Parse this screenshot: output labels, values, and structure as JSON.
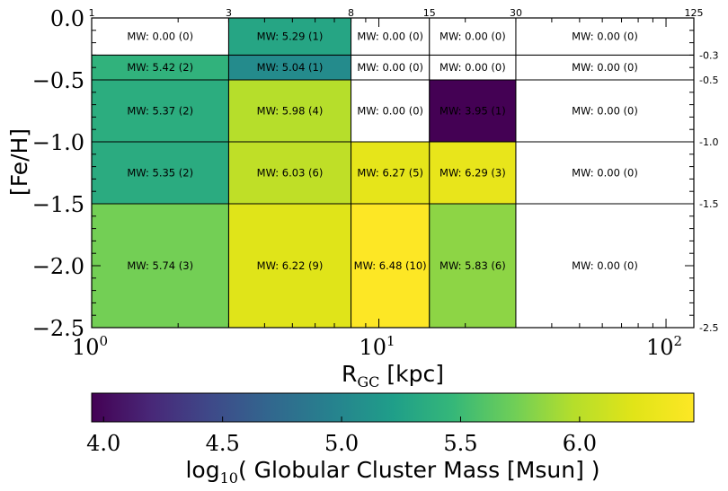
{
  "chart_data": {
    "type": "heatmap",
    "xlabel_main": "R",
    "xlabel_sub": "GC",
    "xlabel_unit": " [kpc]",
    "ylabel": "[Fe/H]",
    "x_scale": "log",
    "xlim": [
      1,
      125
    ],
    "ylim": [
      -2.5,
      0
    ],
    "x_bin_edges": [
      1,
      3,
      8,
      15,
      30,
      125
    ],
    "y_bin_edges": [
      0,
      -0.3,
      -0.5,
      -1.0,
      -1.5,
      -2.5
    ],
    "x_edge_labels": [
      "1",
      "3",
      "8",
      "15",
      "30",
      "125"
    ],
    "y_edge_labels": [
      "-0.3",
      "-0.5",
      "-1.0",
      "-1.5",
      "-2.5"
    ],
    "x_major_ticks": [
      {
        "value": 1,
        "base": "10",
        "exp": "0"
      },
      {
        "value": 10,
        "base": "10",
        "exp": "1"
      },
      {
        "value": 100,
        "base": "10",
        "exp": "2"
      }
    ],
    "y_major_ticks": [
      {
        "value": 0,
        "label": "0.0"
      },
      {
        "value": -0.5,
        "label": "−0.5"
      },
      {
        "value": -1.0,
        "label": "−1.0"
      },
      {
        "value": -1.5,
        "label": "−1.5"
      },
      {
        "value": -2.0,
        "label": "−2.0"
      },
      {
        "value": -2.5,
        "label": "−2.5"
      }
    ],
    "cells": [
      {
        "x0": 1,
        "x1": 3,
        "y0": 0,
        "y1": -0.3,
        "mass": 0.0,
        "n": 0,
        "label": "MW: 0.00 (0)"
      },
      {
        "x0": 3,
        "x1": 8,
        "y0": 0,
        "y1": -0.3,
        "mass": 5.29,
        "n": 1,
        "label": "MW: 5.29 (1)"
      },
      {
        "x0": 8,
        "x1": 15,
        "y0": 0,
        "y1": -0.3,
        "mass": 0.0,
        "n": 0,
        "label": "MW: 0.00 (0)"
      },
      {
        "x0": 15,
        "x1": 30,
        "y0": 0,
        "y1": -0.3,
        "mass": 0.0,
        "n": 0,
        "label": "MW: 0.00 (0)"
      },
      {
        "x0": 30,
        "x1": 125,
        "y0": 0,
        "y1": -0.3,
        "mass": 0.0,
        "n": 0,
        "label": "MW: 0.00 (0)"
      },
      {
        "x0": 1,
        "x1": 3,
        "y0": -0.3,
        "y1": -0.5,
        "mass": 5.42,
        "n": 2,
        "label": "MW: 5.42 (2)"
      },
      {
        "x0": 3,
        "x1": 8,
        "y0": -0.3,
        "y1": -0.5,
        "mass": 5.04,
        "n": 1,
        "label": "MW: 5.04 (1)"
      },
      {
        "x0": 8,
        "x1": 15,
        "y0": -0.3,
        "y1": -0.5,
        "mass": 0.0,
        "n": 0,
        "label": "MW: 0.00 (0)"
      },
      {
        "x0": 15,
        "x1": 30,
        "y0": -0.3,
        "y1": -0.5,
        "mass": 0.0,
        "n": 0,
        "label": "MW: 0.00 (0)"
      },
      {
        "x0": 30,
        "x1": 125,
        "y0": -0.3,
        "y1": -0.5,
        "mass": 0.0,
        "n": 0,
        "label": "MW: 0.00 (0)"
      },
      {
        "x0": 1,
        "x1": 3,
        "y0": -0.5,
        "y1": -1.0,
        "mass": 5.37,
        "n": 2,
        "label": "MW: 5.37 (2)"
      },
      {
        "x0": 3,
        "x1": 8,
        "y0": -0.5,
        "y1": -1.0,
        "mass": 5.98,
        "n": 4,
        "label": "MW: 5.98 (4)"
      },
      {
        "x0": 8,
        "x1": 15,
        "y0": -0.5,
        "y1": -1.0,
        "mass": 0.0,
        "n": 0,
        "label": "MW: 0.00 (0)"
      },
      {
        "x0": 15,
        "x1": 30,
        "y0": -0.5,
        "y1": -1.0,
        "mass": 3.95,
        "n": 1,
        "label": "MW: 3.95 (1)"
      },
      {
        "x0": 30,
        "x1": 125,
        "y0": -0.5,
        "y1": -1.0,
        "mass": 0.0,
        "n": 0,
        "label": "MW: 0.00 (0)"
      },
      {
        "x0": 1,
        "x1": 3,
        "y0": -1.0,
        "y1": -1.5,
        "mass": 5.35,
        "n": 2,
        "label": "MW: 5.35 (2)"
      },
      {
        "x0": 3,
        "x1": 8,
        "y0": -1.0,
        "y1": -1.5,
        "mass": 6.03,
        "n": 6,
        "label": "MW: 6.03 (6)"
      },
      {
        "x0": 8,
        "x1": 15,
        "y0": -1.0,
        "y1": -1.5,
        "mass": 6.27,
        "n": 5,
        "label": "MW: 6.27 (5)"
      },
      {
        "x0": 15,
        "x1": 30,
        "y0": -1.0,
        "y1": -1.5,
        "mass": 6.29,
        "n": 3,
        "label": "MW: 6.29 (3)"
      },
      {
        "x0": 30,
        "x1": 125,
        "y0": -1.0,
        "y1": -1.5,
        "mass": 0.0,
        "n": 0,
        "label": "MW: 0.00 (0)"
      },
      {
        "x0": 1,
        "x1": 3,
        "y0": -1.5,
        "y1": -2.5,
        "mass": 5.74,
        "n": 3,
        "label": "MW: 5.74 (3)"
      },
      {
        "x0": 3,
        "x1": 8,
        "y0": -1.5,
        "y1": -2.5,
        "mass": 6.22,
        "n": 9,
        "label": "MW: 6.22 (9)"
      },
      {
        "x0": 8,
        "x1": 15,
        "y0": -1.5,
        "y1": -2.5,
        "mass": 6.48,
        "n": 10,
        "label": "MW: 6.48 (10)"
      },
      {
        "x0": 15,
        "x1": 30,
        "y0": -1.5,
        "y1": -2.5,
        "mass": 5.83,
        "n": 6,
        "label": "MW: 5.83 (6)"
      },
      {
        "x0": 30,
        "x1": 125,
        "y0": -1.5,
        "y1": -2.5,
        "mass": 0.0,
        "n": 0,
        "label": "MW: 0.00 (0)"
      }
    ],
    "colorbar": {
      "colormap": "viridis",
      "vmin": 3.95,
      "vmax": 6.48,
      "ticks": [
        4.0,
        4.5,
        5.0,
        5.5,
        6.0
      ],
      "tick_labels": [
        "4.0",
        "4.5",
        "5.0",
        "5.5",
        "6.0"
      ],
      "label_prefix": "log",
      "label_sub": "10",
      "label_suffix": "( Globular Cluster Mass [Msun] )"
    },
    "grid": false,
    "legend": "none"
  }
}
